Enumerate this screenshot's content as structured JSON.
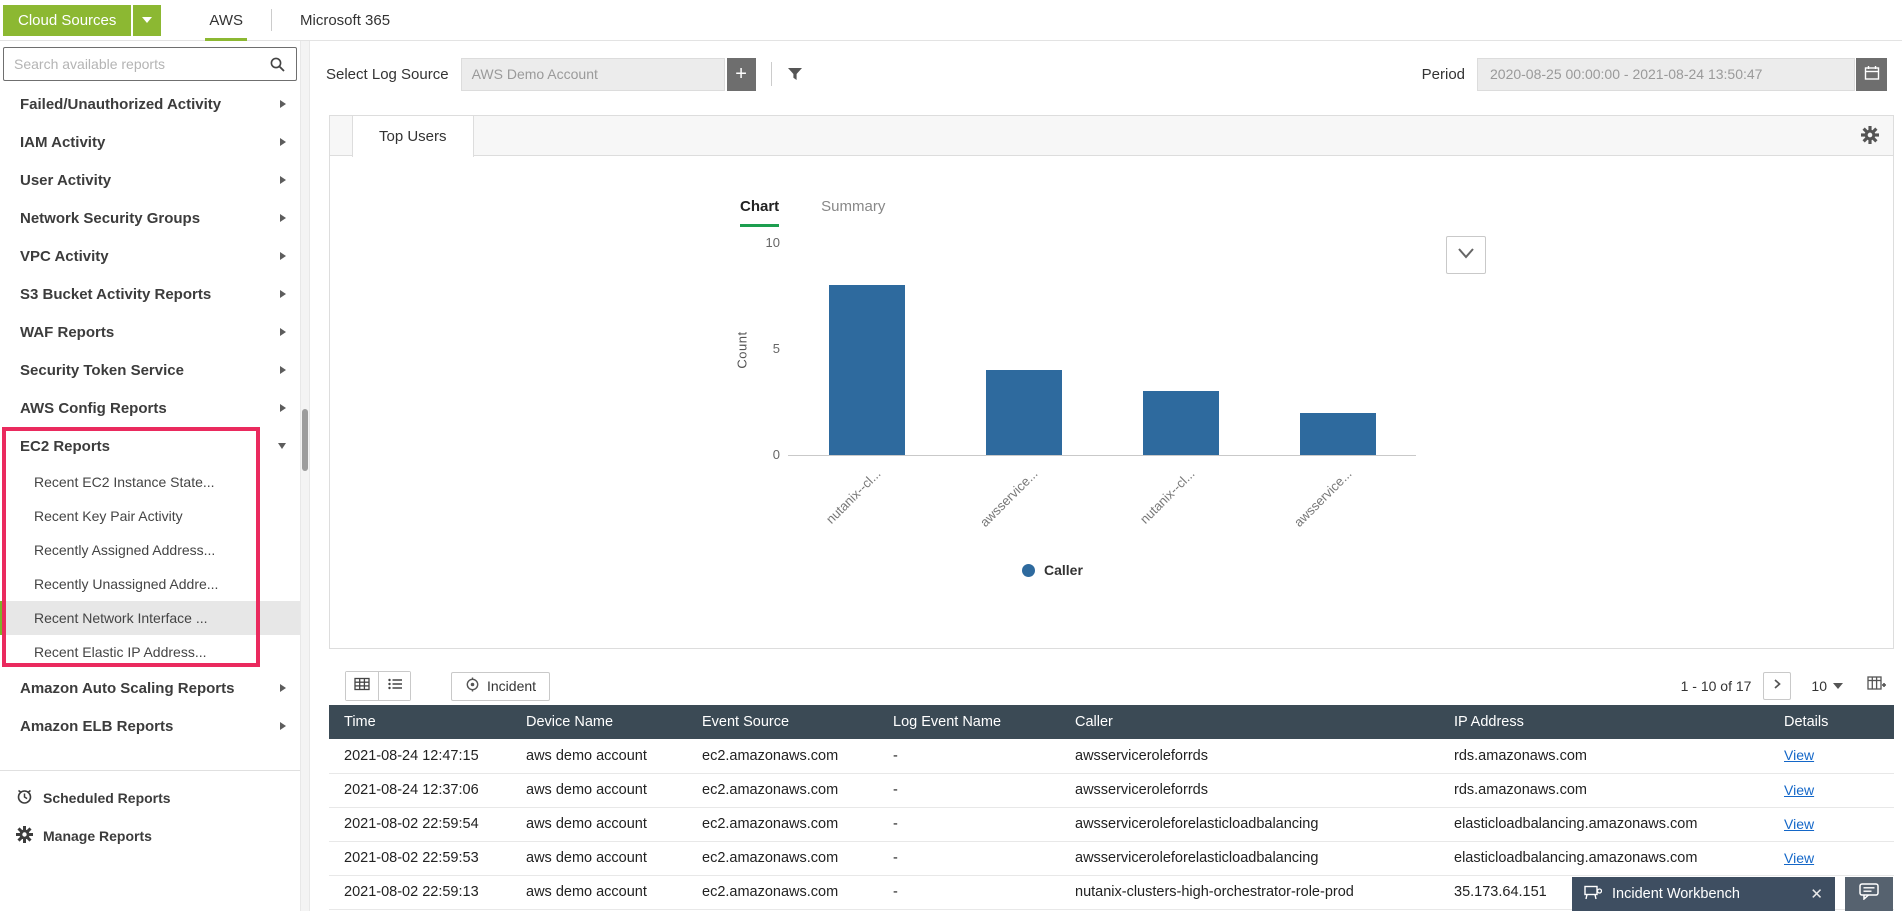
{
  "topbar": {
    "cloud_sources": "Cloud Sources",
    "tabs": [
      {
        "label": "AWS",
        "active": true
      },
      {
        "label": "Microsoft 365",
        "active": false
      }
    ]
  },
  "sidebar": {
    "search_placeholder": "Search available reports",
    "items": [
      "Failed/Unauthorized Activity",
      "IAM Activity",
      "User Activity",
      "Network Security Groups",
      "VPC Activity",
      "S3 Bucket Activity Reports",
      "WAF Reports",
      "Security Token Service",
      "AWS Config Reports"
    ],
    "ec2_group": {
      "label": "EC2 Reports",
      "expanded": true,
      "children": [
        {
          "label": "Recent EC2 Instance State...",
          "selected": false
        },
        {
          "label": "Recent Key Pair Activity",
          "selected": false
        },
        {
          "label": "Recently Assigned Address...",
          "selected": false
        },
        {
          "label": "Recently Unassigned Addre...",
          "selected": false
        },
        {
          "label": "Recent Network Interface ...",
          "selected": true
        },
        {
          "label": "Recent Elastic IP Address...",
          "selected": false
        }
      ]
    },
    "items_after": [
      "Amazon Auto Scaling Reports",
      "Amazon ELB Reports"
    ],
    "footer": [
      {
        "label": "Scheduled Reports",
        "icon": "clock-icon"
      },
      {
        "label": "Manage Reports",
        "icon": "gear-icon"
      }
    ]
  },
  "filters": {
    "log_source_label": "Select Log Source",
    "log_source_value": "AWS Demo Account",
    "add_button": "+",
    "period_label": "Period",
    "period_value": "2020-08-25 00:00:00 - 2021-08-24 13:50:47"
  },
  "report": {
    "tab_label": "Top Users",
    "view_tabs": [
      {
        "label": "Chart",
        "active": true
      },
      {
        "label": "Summary",
        "active": false
      }
    ]
  },
  "chart_data": {
    "type": "bar",
    "categories": [
      "nutanix--cl...",
      "awsservice...",
      "nutanix--cl...",
      "awsservice..."
    ],
    "values": [
      8,
      4,
      3,
      2
    ],
    "title": "",
    "xlabel": "",
    "ylabel": "Count",
    "ylim": [
      0,
      10
    ],
    "yticks": [
      0,
      5,
      10
    ],
    "grid": false,
    "legend_position": "bottom",
    "legend": [
      {
        "name": "Caller",
        "color": "#2e6a9e"
      }
    ],
    "bar_color": "#2e6a9e"
  },
  "table": {
    "incident_button": "Incident",
    "pagination": {
      "range": "1 - 10 of 17",
      "page_size": "10"
    },
    "columns": [
      "Time",
      "Device Name",
      "Event Source",
      "Log Event Name",
      "Caller",
      "IP Address",
      "Details"
    ],
    "details_link": "View",
    "rows": [
      {
        "time": "2021-08-24 12:47:15",
        "device": "aws demo account",
        "source": "ec2.amazonaws.com",
        "log_event": "-",
        "caller": "awsserviceroleforrds",
        "ip": "rds.amazonaws.com"
      },
      {
        "time": "2021-08-24 12:37:06",
        "device": "aws demo account",
        "source": "ec2.amazonaws.com",
        "log_event": "-",
        "caller": "awsserviceroleforrds",
        "ip": "rds.amazonaws.com"
      },
      {
        "time": "2021-08-02 22:59:54",
        "device": "aws demo account",
        "source": "ec2.amazonaws.com",
        "log_event": "-",
        "caller": "awsserviceroleforelasticloadbalancing",
        "ip": "elasticloadbalancing.amazonaws.com"
      },
      {
        "time": "2021-08-02 22:59:53",
        "device": "aws demo account",
        "source": "ec2.amazonaws.com",
        "log_event": "-",
        "caller": "awsserviceroleforelasticloadbalancing",
        "ip": "elasticloadbalancing.amazonaws.com"
      },
      {
        "time": "2021-08-02 22:59:13",
        "device": "aws demo account",
        "source": "ec2.amazonaws.com",
        "log_event": "-",
        "caller": "nutanix-clusters-high-orchestrator-role-prod",
        "ip": "35.173.64.151"
      }
    ]
  },
  "workbench": {
    "label": "Incident Workbench"
  },
  "colors": {
    "accent_green": "#8cb832",
    "chart_tab_green": "#1d9e4f",
    "bar_blue": "#2e6a9e",
    "table_header_dark": "#3b4a55",
    "highlight_red": "#ea2a5e",
    "workbench_bg": "#3e4e61"
  }
}
